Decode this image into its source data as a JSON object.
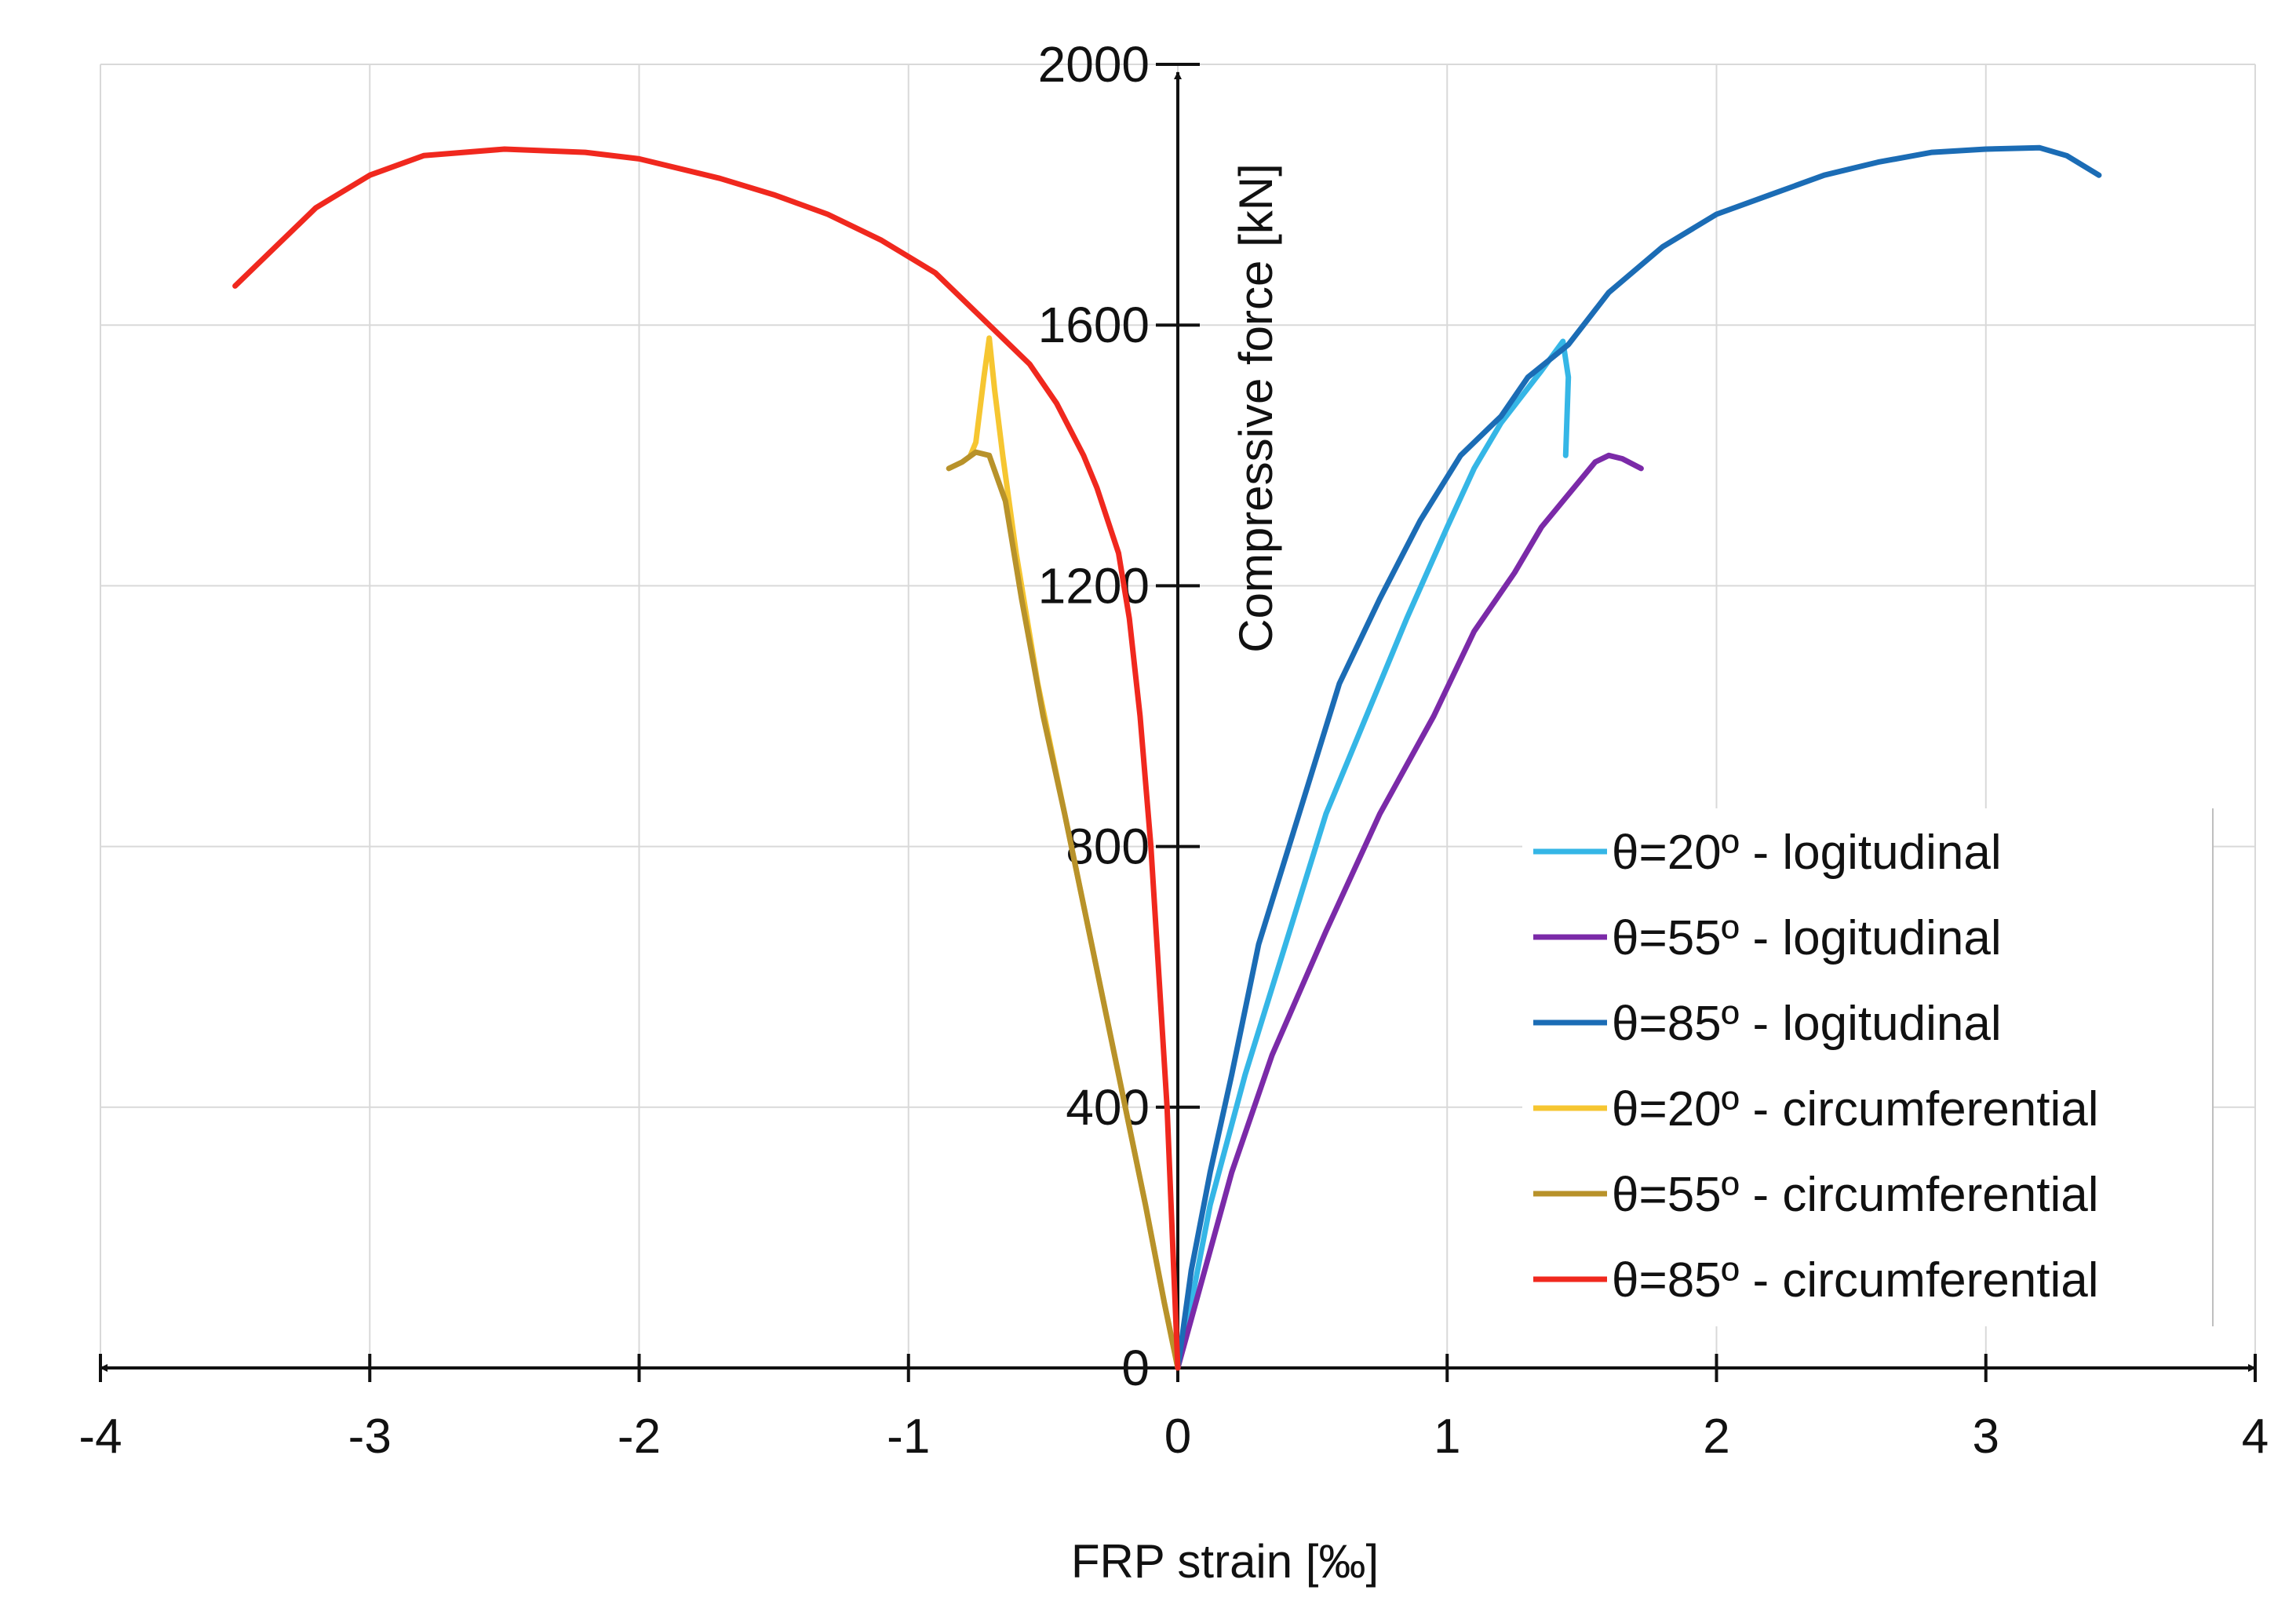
{
  "chart_data": {
    "type": "line",
    "title": "",
    "xlabel": "FRP strain [‰]",
    "ylabel": "Compressive force [kN]",
    "xlim": [
      -4,
      4
    ],
    "ylim": [
      0,
      2000
    ],
    "x_ticks": [
      -4,
      -3,
      -2,
      -1,
      0,
      1,
      2,
      3,
      4
    ],
    "x_tick_labels": [
      "-4",
      "-3",
      "-2",
      "-1",
      "0",
      "1",
      "2",
      "3",
      "4"
    ],
    "y_ticks": [
      0,
      400,
      800,
      1200,
      1600,
      2000
    ],
    "y_tick_labels": [
      "0",
      "400",
      "800",
      "1200",
      "1600",
      "2000"
    ],
    "grid": true,
    "legend_position": "bottom-right",
    "colors": {
      "theta20_long": "#35B6E6",
      "theta55_long": "#7B2AA8",
      "theta85_long": "#1B6CB5",
      "theta20_circ": "#F6C631",
      "theta55_circ": "#B8922A",
      "theta85_circ": "#F0281E",
      "grid": "#d9d9d9",
      "axis": "#111111"
    },
    "series": [
      {
        "name": "θ=20º - logitudinal",
        "color_key": "theta20_long",
        "points": [
          [
            0,
            0
          ],
          [
            0.05,
            100
          ],
          [
            0.12,
            250
          ],
          [
            0.25,
            450
          ],
          [
            0.4,
            650
          ],
          [
            0.55,
            850
          ],
          [
            0.7,
            1000
          ],
          [
            0.85,
            1150
          ],
          [
            1.0,
            1290
          ],
          [
            1.1,
            1380
          ],
          [
            1.2,
            1450
          ],
          [
            1.35,
            1530
          ],
          [
            1.43,
            1575
          ],
          [
            1.45,
            1520
          ],
          [
            1.44,
            1400
          ]
        ]
      },
      {
        "name": "θ=55º - logitudinal",
        "color_key": "theta55_long",
        "points": [
          [
            0,
            0
          ],
          [
            0.08,
            120
          ],
          [
            0.2,
            300
          ],
          [
            0.35,
            480
          ],
          [
            0.55,
            670
          ],
          [
            0.75,
            850
          ],
          [
            0.95,
            1000
          ],
          [
            1.1,
            1130
          ],
          [
            1.25,
            1220
          ],
          [
            1.35,
            1290
          ],
          [
            1.45,
            1340
          ],
          [
            1.55,
            1390
          ],
          [
            1.6,
            1400
          ],
          [
            1.65,
            1395
          ],
          [
            1.72,
            1380
          ]
        ]
      },
      {
        "name": "θ=85º - logitudinal",
        "color_key": "theta85_long",
        "points": [
          [
            0,
            0
          ],
          [
            0.05,
            150
          ],
          [
            0.12,
            300
          ],
          [
            0.2,
            450
          ],
          [
            0.3,
            650
          ],
          [
            0.45,
            850
          ],
          [
            0.6,
            1050
          ],
          [
            0.75,
            1180
          ],
          [
            0.9,
            1300
          ],
          [
            1.05,
            1400
          ],
          [
            1.2,
            1460
          ],
          [
            1.3,
            1520
          ],
          [
            1.45,
            1570
          ],
          [
            1.6,
            1650
          ],
          [
            1.8,
            1720
          ],
          [
            2.0,
            1770
          ],
          [
            2.2,
            1800
          ],
          [
            2.4,
            1830
          ],
          [
            2.6,
            1850
          ],
          [
            2.8,
            1865
          ],
          [
            3.0,
            1870
          ],
          [
            3.2,
            1872
          ],
          [
            3.3,
            1860
          ],
          [
            3.42,
            1830
          ]
        ]
      },
      {
        "name": "θ=20º - circumferential",
        "color_key": "theta20_circ",
        "points": [
          [
            0,
            0
          ],
          [
            -0.05,
            100
          ],
          [
            -0.12,
            250
          ],
          [
            -0.22,
            450
          ],
          [
            -0.32,
            650
          ],
          [
            -0.42,
            850
          ],
          [
            -0.52,
            1050
          ],
          [
            -0.6,
            1250
          ],
          [
            -0.65,
            1400
          ],
          [
            -0.68,
            1500
          ],
          [
            -0.7,
            1580
          ],
          [
            -0.72,
            1520
          ],
          [
            -0.75,
            1420
          ],
          [
            -0.77,
            1400
          ]
        ]
      },
      {
        "name": "θ=55º - circumferential",
        "color_key": "theta55_circ",
        "points": [
          [
            0,
            0
          ],
          [
            -0.05,
            100
          ],
          [
            -0.12,
            250
          ],
          [
            -0.22,
            450
          ],
          [
            -0.32,
            650
          ],
          [
            -0.42,
            850
          ],
          [
            -0.5,
            1000
          ],
          [
            -0.58,
            1180
          ],
          [
            -0.64,
            1330
          ],
          [
            -0.7,
            1400
          ],
          [
            -0.75,
            1405
          ],
          [
            -0.8,
            1390
          ],
          [
            -0.85,
            1380
          ]
        ]
      },
      {
        "name": "θ=85º - circumferential",
        "color_key": "theta85_circ",
        "points": [
          [
            0,
            0
          ],
          [
            -0.02,
            200
          ],
          [
            -0.04,
            400
          ],
          [
            -0.07,
            600
          ],
          [
            -0.1,
            800
          ],
          [
            -0.14,
            1000
          ],
          [
            -0.18,
            1150
          ],
          [
            -0.22,
            1250
          ],
          [
            -0.3,
            1350
          ],
          [
            -0.35,
            1400
          ],
          [
            -0.45,
            1480
          ],
          [
            -0.55,
            1540
          ],
          [
            -0.65,
            1580
          ],
          [
            -0.75,
            1620
          ],
          [
            -0.9,
            1680
          ],
          [
            -1.1,
            1730
          ],
          [
            -1.3,
            1770
          ],
          [
            -1.5,
            1800
          ],
          [
            -1.7,
            1825
          ],
          [
            -2.0,
            1855
          ],
          [
            -2.2,
            1865
          ],
          [
            -2.5,
            1870
          ],
          [
            -2.8,
            1860
          ],
          [
            -3.0,
            1830
          ],
          [
            -3.2,
            1780
          ],
          [
            -3.35,
            1720
          ],
          [
            -3.5,
            1660
          ]
        ]
      }
    ]
  }
}
